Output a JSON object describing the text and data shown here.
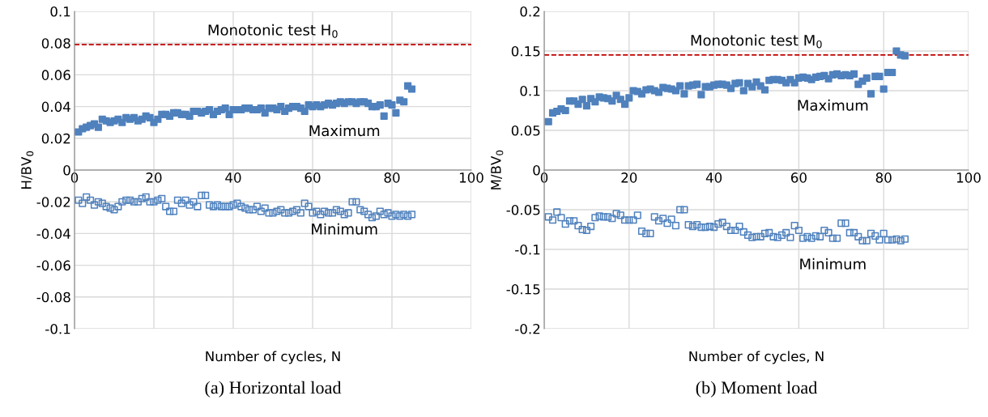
{
  "chart_data": [
    {
      "type": "scatter",
      "title": "(a) Horizontal load",
      "xlabel": "Number of cycles, N",
      "ylabel": "H/BV$_{0}$",
      "x": [
        1,
        2,
        3,
        4,
        5,
        6,
        7,
        8,
        9,
        10,
        11,
        12,
        13,
        14,
        15,
        16,
        17,
        18,
        19,
        20,
        21,
        22,
        23,
        24,
        25,
        26,
        27,
        28,
        29,
        30,
        31,
        32,
        33,
        34,
        35,
        36,
        37,
        38,
        39,
        40,
        41,
        42,
        43,
        44,
        45,
        46,
        47,
        48,
        49,
        50,
        51,
        52,
        53,
        54,
        55,
        56,
        57,
        58,
        59,
        60,
        61,
        62,
        63,
        64,
        65,
        66,
        67,
        68,
        69,
        70,
        71,
        72,
        73,
        74,
        75,
        76,
        77,
        78,
        79,
        80,
        81,
        82,
        83,
        84,
        85
      ],
      "series": [
        {
          "color": "#4f81bd",
          "values": [
            0.024,
            0.026,
            0.027,
            0.028,
            0.029,
            0.027,
            0.032,
            0.031,
            0.03,
            0.031,
            0.032,
            0.03,
            0.033,
            0.032,
            0.033,
            0.031,
            0.032,
            0.034,
            0.033,
            0.03,
            0.032,
            0.035,
            0.035,
            0.034,
            0.036,
            0.036,
            0.035,
            0.035,
            0.034,
            0.037,
            0.037,
            0.036,
            0.037,
            0.038,
            0.035,
            0.037,
            0.038,
            0.039,
            0.035,
            0.038,
            0.038,
            0.038,
            0.039,
            0.039,
            0.038,
            0.038,
            0.039,
            0.036,
            0.039,
            0.039,
            0.038,
            0.04,
            0.037,
            0.039,
            0.04,
            0.04,
            0.039,
            0.037,
            0.041,
            0.04,
            0.041,
            0.04,
            0.041,
            0.042,
            0.041,
            0.042,
            0.043,
            0.042,
            0.043,
            0.043,
            0.042,
            0.043,
            0.043,
            0.042,
            0.04,
            0.04,
            0.041,
            0.034,
            0.042,
            0.041,
            0.036,
            0.044,
            0.043,
            0.053,
            0.051
          ]
        },
        {
          "color": "#4f81bd",
          "values": [
            -0.019,
            -0.021,
            -0.017,
            -0.019,
            -0.022,
            -0.02,
            -0.021,
            -0.023,
            -0.024,
            -0.025,
            -0.023,
            -0.02,
            -0.019,
            -0.019,
            -0.02,
            -0.02,
            -0.018,
            -0.017,
            -0.02,
            -0.02,
            -0.019,
            -0.018,
            -0.023,
            -0.026,
            -0.026,
            -0.019,
            -0.021,
            -0.019,
            -0.022,
            -0.02,
            -0.023,
            -0.016,
            -0.016,
            -0.022,
            -0.023,
            -0.022,
            -0.023,
            -0.023,
            -0.023,
            -0.022,
            -0.021,
            -0.023,
            -0.024,
            -0.025,
            -0.025,
            -0.023,
            -0.026,
            -0.024,
            -0.027,
            -0.027,
            -0.026,
            -0.025,
            -0.027,
            -0.027,
            -0.026,
            -0.025,
            -0.027,
            -0.021,
            -0.023,
            -0.027,
            -0.026,
            -0.028,
            -0.026,
            -0.027,
            -0.027,
            -0.025,
            -0.026,
            -0.028,
            -0.027,
            -0.02,
            -0.02,
            -0.025,
            -0.026,
            -0.028,
            -0.03,
            -0.029,
            -0.026,
            -0.028,
            -0.027,
            -0.029,
            -0.028,
            -0.029,
            -0.028,
            -0.029,
            -0.028
          ]
        }
      ],
      "ref_lines": [
        {
          "axis": "y",
          "value": 0.079,
          "color": "#c00000",
          "line_style": "dashed",
          "label": "Monotonic test H$_{0}$"
        }
      ],
      "annotations": [
        "Maximum",
        "Minimum"
      ],
      "xlim": [
        0,
        100
      ],
      "xticks": [
        0,
        20,
        40,
        60,
        80,
        100
      ],
      "ylim": [
        -0.1,
        0.1
      ],
      "yticks": [
        -0.1,
        -0.08,
        -0.06,
        -0.04,
        -0.02,
        0,
        0.02,
        0.04,
        0.06,
        0.08,
        0.1
      ],
      "grid": true,
      "marker": "square"
    },
    {
      "type": "scatter",
      "title": "(b) Moment load",
      "xlabel": "Number of cycles, N",
      "ylabel": "M/BV$_{0}$",
      "x": [
        1,
        2,
        3,
        4,
        5,
        6,
        7,
        8,
        9,
        10,
        11,
        12,
        13,
        14,
        15,
        16,
        17,
        18,
        19,
        20,
        21,
        22,
        23,
        24,
        25,
        26,
        27,
        28,
        29,
        30,
        31,
        32,
        33,
        34,
        35,
        36,
        37,
        38,
        39,
        40,
        41,
        42,
        43,
        44,
        45,
        46,
        47,
        48,
        49,
        50,
        51,
        52,
        53,
        54,
        55,
        56,
        57,
        58,
        59,
        60,
        61,
        62,
        63,
        64,
        65,
        66,
        67,
        68,
        69,
        70,
        71,
        72,
        73,
        74,
        75,
        76,
        77,
        78,
        79,
        80,
        81,
        82,
        83,
        84,
        85
      ],
      "series": [
        {
          "color": "#4f81bd",
          "values": [
            0.061,
            0.072,
            0.074,
            0.077,
            0.075,
            0.087,
            0.087,
            0.083,
            0.089,
            0.081,
            0.09,
            0.086,
            0.092,
            0.091,
            0.09,
            0.087,
            0.094,
            0.089,
            0.083,
            0.091,
            0.1,
            0.099,
            0.096,
            0.101,
            0.102,
            0.1,
            0.098,
            0.104,
            0.103,
            0.102,
            0.1,
            0.106,
            0.096,
            0.106,
            0.107,
            0.108,
            0.095,
            0.105,
            0.105,
            0.107,
            0.108,
            0.108,
            0.107,
            0.103,
            0.109,
            0.11,
            0.1,
            0.109,
            0.105,
            0.111,
            0.106,
            0.101,
            0.113,
            0.114,
            0.114,
            0.113,
            0.11,
            0.114,
            0.11,
            0.116,
            0.117,
            0.116,
            0.114,
            0.117,
            0.118,
            0.119,
            0.115,
            0.12,
            0.121,
            0.119,
            0.12,
            0.119,
            0.121,
            0.108,
            0.112,
            0.116,
            0.096,
            0.118,
            0.118,
            0.102,
            0.123,
            0.123,
            0.15,
            0.145,
            0.144
          ]
        },
        {
          "color": "#4f81bd",
          "values": [
            -0.059,
            -0.063,
            -0.053,
            -0.06,
            -0.068,
            -0.064,
            -0.064,
            -0.07,
            -0.075,
            -0.076,
            -0.071,
            -0.06,
            -0.058,
            -0.059,
            -0.059,
            -0.061,
            -0.055,
            -0.057,
            -0.063,
            -0.063,
            -0.063,
            -0.057,
            -0.077,
            -0.08,
            -0.08,
            -0.059,
            -0.064,
            -0.061,
            -0.067,
            -0.062,
            -0.07,
            -0.05,
            -0.05,
            -0.069,
            -0.071,
            -0.069,
            -0.072,
            -0.072,
            -0.071,
            -0.072,
            -0.068,
            -0.066,
            -0.071,
            -0.076,
            -0.076,
            -0.071,
            -0.078,
            -0.082,
            -0.085,
            -0.084,
            -0.084,
            -0.08,
            -0.079,
            -0.084,
            -0.085,
            -0.082,
            -0.079,
            -0.085,
            -0.07,
            -0.076,
            -0.086,
            -0.084,
            -0.086,
            -0.083,
            -0.084,
            -0.076,
            -0.079,
            -0.086,
            -0.086,
            -0.067,
            -0.067,
            -0.079,
            -0.079,
            -0.084,
            -0.089,
            -0.089,
            -0.08,
            -0.083,
            -0.088,
            -0.08,
            -0.088,
            -0.088,
            -0.087,
            -0.089,
            -0.087
          ]
        }
      ],
      "ref_lines": [
        {
          "axis": "y",
          "value": 0.145,
          "color": "#c00000",
          "line_style": "dashed",
          "label": "Monotonic test M$_{0}$"
        }
      ],
      "annotations": [
        "Maximum",
        "Minimum"
      ],
      "xlim": [
        0,
        100
      ],
      "xticks": [
        0,
        20,
        40,
        60,
        80,
        100
      ],
      "ylim": [
        -0.2,
        0.2
      ],
      "yticks": [
        -0.2,
        -0.15,
        -0.1,
        -0.05,
        0,
        0.05,
        0.1,
        0.15,
        0.2
      ],
      "grid": true,
      "marker": "square"
    }
  ]
}
